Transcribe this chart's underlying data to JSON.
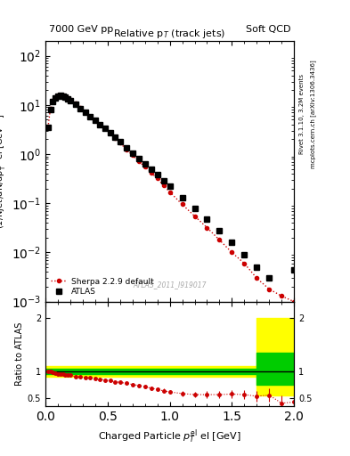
{
  "title_left": "7000 GeV pp",
  "title_right": "Soft QCD",
  "plot_title": "Relative p$_T$ (track jets)",
  "ylabel_main": "(1/Njet)dN/dp$^{rel}_T$ el [GeV$^{-1}$]",
  "ylabel_ratio": "Ratio to ATLAS",
  "xlabel": "Charged Particle $p^{el}_T$ el [GeV]",
  "right_label_top": "Rivet 3.1.10, 3.2M events",
  "right_label_bot": "mcplots.cern.ch [arXiv:1306.3436]",
  "watermark": "ATLAS_2011_I919017",
  "atlas_x": [
    0.02,
    0.04,
    0.06,
    0.08,
    0.1,
    0.12,
    0.14,
    0.16,
    0.18,
    0.2,
    0.24,
    0.28,
    0.32,
    0.36,
    0.4,
    0.44,
    0.48,
    0.52,
    0.56,
    0.6,
    0.65,
    0.7,
    0.75,
    0.8,
    0.85,
    0.9,
    0.95,
    1.0,
    1.1,
    1.2,
    1.3,
    1.4,
    1.5,
    1.6,
    1.7,
    1.8,
    2.0
  ],
  "atlas_y": [
    3.5,
    8.0,
    12.0,
    14.0,
    15.0,
    15.5,
    15.0,
    14.5,
    13.5,
    12.5,
    10.5,
    8.5,
    7.0,
    5.8,
    4.8,
    4.0,
    3.3,
    2.7,
    2.2,
    1.8,
    1.35,
    1.05,
    0.82,
    0.63,
    0.5,
    0.38,
    0.29,
    0.22,
    0.13,
    0.08,
    0.048,
    0.028,
    0.016,
    0.009,
    0.005,
    0.003,
    0.0045
  ],
  "sherpa_x": [
    0.02,
    0.04,
    0.06,
    0.08,
    0.1,
    0.12,
    0.14,
    0.16,
    0.18,
    0.2,
    0.24,
    0.28,
    0.32,
    0.36,
    0.4,
    0.44,
    0.48,
    0.52,
    0.56,
    0.6,
    0.65,
    0.7,
    0.75,
    0.8,
    0.85,
    0.9,
    0.95,
    1.0,
    1.1,
    1.2,
    1.3,
    1.4,
    1.5,
    1.6,
    1.7,
    1.8,
    1.9,
    2.0
  ],
  "sherpa_y": [
    3.5,
    8.5,
    12.5,
    14.5,
    15.5,
    16.0,
    15.5,
    15.0,
    14.0,
    13.0,
    10.8,
    8.8,
    7.2,
    5.9,
    4.9,
    4.0,
    3.3,
    2.7,
    2.1,
    1.7,
    1.25,
    0.95,
    0.72,
    0.55,
    0.42,
    0.32,
    0.23,
    0.17,
    0.095,
    0.055,
    0.032,
    0.018,
    0.01,
    0.006,
    0.003,
    0.0018,
    0.0013,
    0.001
  ],
  "ratio_x": [
    0.02,
    0.04,
    0.06,
    0.08,
    0.1,
    0.12,
    0.14,
    0.16,
    0.18,
    0.2,
    0.24,
    0.28,
    0.32,
    0.36,
    0.4,
    0.44,
    0.48,
    0.52,
    0.56,
    0.6,
    0.65,
    0.7,
    0.75,
    0.8,
    0.85,
    0.9,
    0.95,
    1.0,
    1.1,
    1.2,
    1.3,
    1.4,
    1.5,
    1.6,
    1.7,
    1.8,
    1.9,
    2.0
  ],
  "ratio_y": [
    1.0,
    1.0,
    0.97,
    0.96,
    0.95,
    0.94,
    0.94,
    0.93,
    0.92,
    0.92,
    0.9,
    0.89,
    0.88,
    0.87,
    0.86,
    0.85,
    0.83,
    0.82,
    0.8,
    0.79,
    0.77,
    0.75,
    0.73,
    0.71,
    0.68,
    0.66,
    0.63,
    0.61,
    0.58,
    0.56,
    0.56,
    0.56,
    0.57,
    0.56,
    0.53,
    0.55,
    0.4,
    0.42
  ],
  "ratio_err": [
    0.02,
    0.02,
    0.02,
    0.02,
    0.02,
    0.02,
    0.02,
    0.02,
    0.02,
    0.02,
    0.02,
    0.02,
    0.02,
    0.02,
    0.02,
    0.02,
    0.02,
    0.03,
    0.03,
    0.03,
    0.03,
    0.03,
    0.03,
    0.03,
    0.03,
    0.04,
    0.04,
    0.04,
    0.05,
    0.05,
    0.06,
    0.07,
    0.07,
    0.08,
    0.1,
    0.12,
    0.15,
    0.15
  ],
  "color_atlas": "#000000",
  "color_sherpa": "#cc0000",
  "color_yellow": "#ffff00",
  "color_green": "#00cc00",
  "xlim": [
    0.0,
    2.0
  ],
  "ylim_main": [
    0.001,
    200
  ],
  "ylim_ratio": [
    0.35,
    2.3
  ]
}
